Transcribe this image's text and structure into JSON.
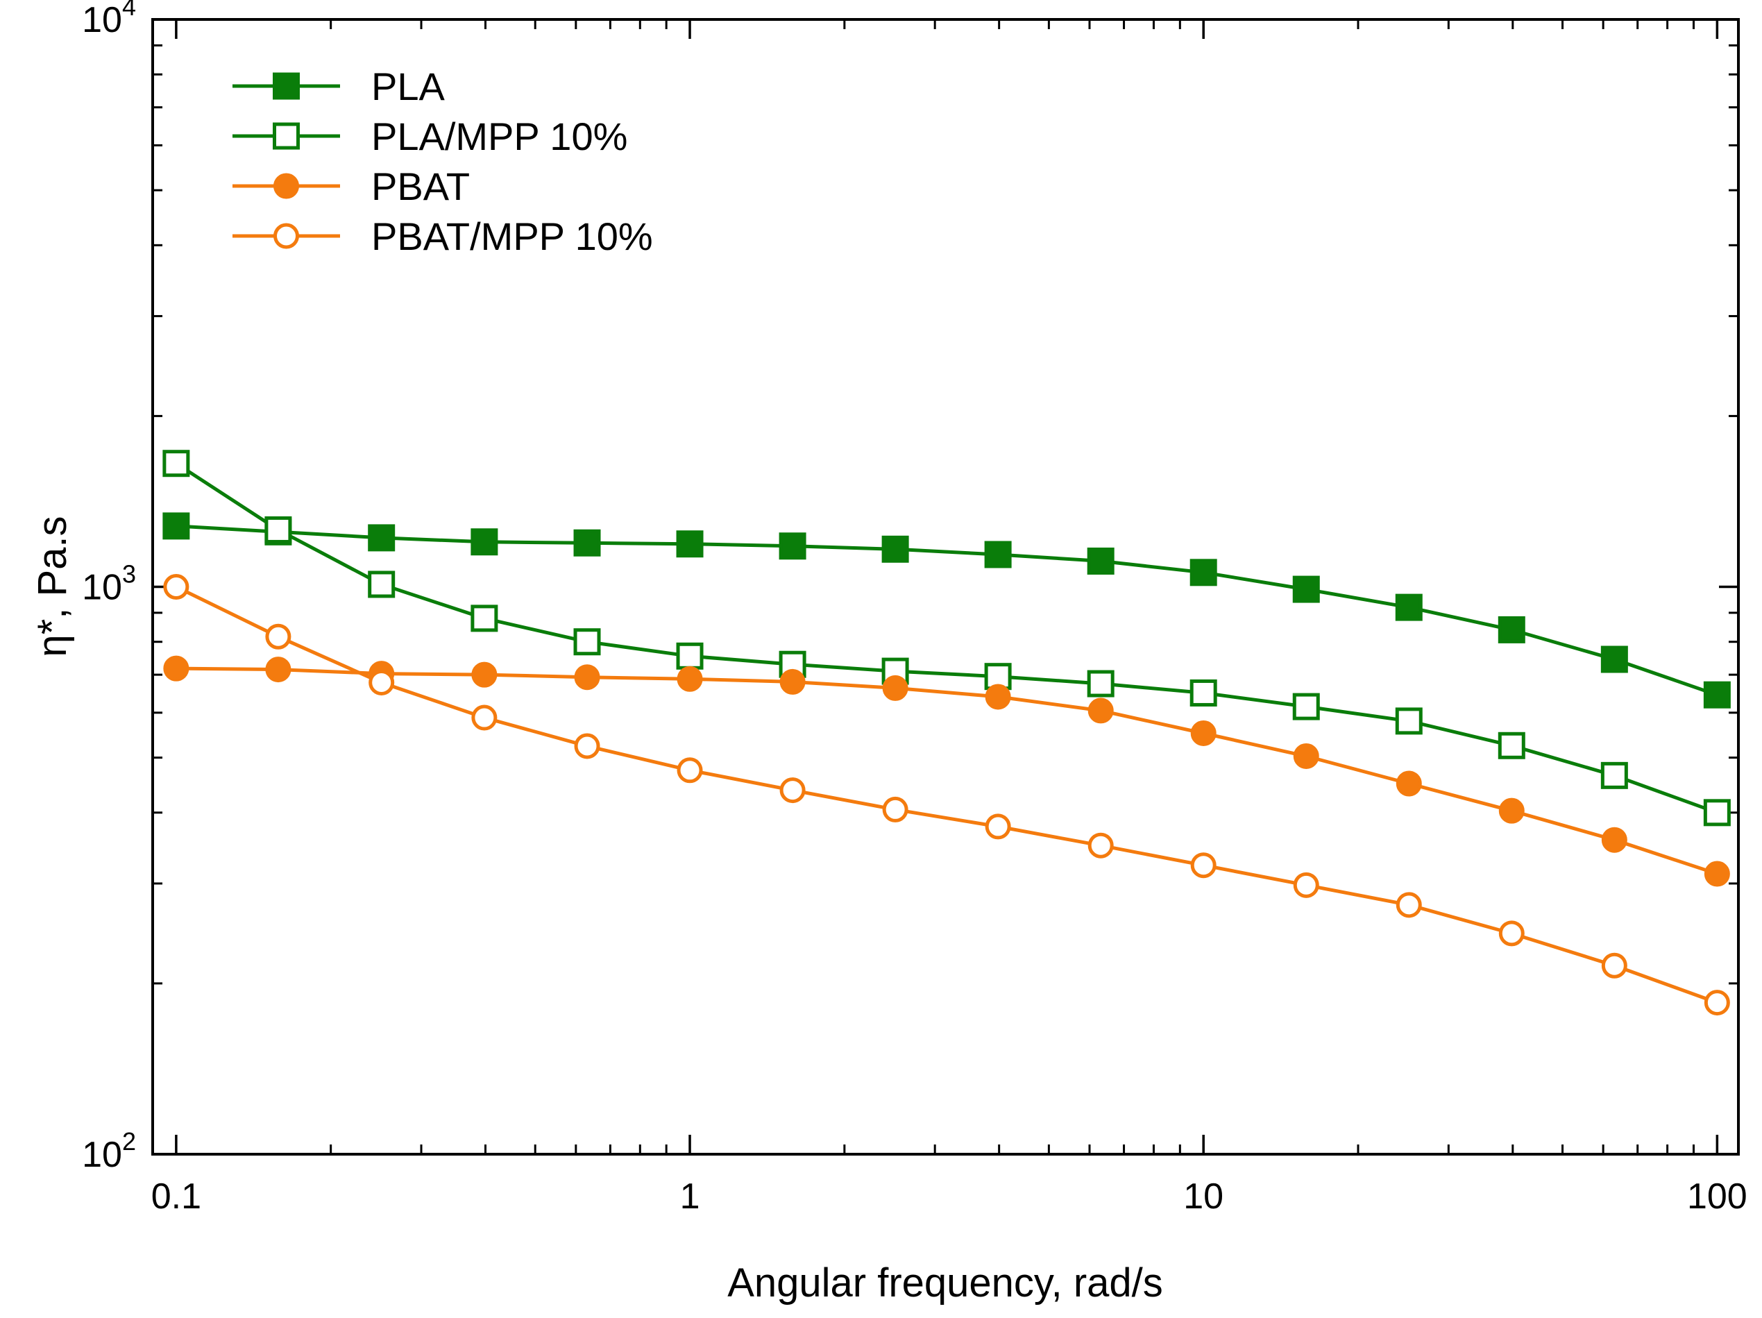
{
  "chart_data": {
    "type": "line",
    "title": "",
    "xlabel": "Angular frequency, rad/s",
    "ylabel": "η*,  Pa.s",
    "xscale": "log",
    "yscale": "log",
    "xlim": [
      0.09,
      110
    ],
    "ylim": [
      100,
      10000
    ],
    "x_ticks": [
      {
        "value": 0.1,
        "label": "0.1"
      },
      {
        "value": 1,
        "label": "1"
      },
      {
        "value": 10,
        "label": "10"
      },
      {
        "value": 100,
        "label": "100"
      }
    ],
    "y_ticks": [
      {
        "value": 100,
        "base": "10",
        "exp": "2"
      },
      {
        "value": 1000,
        "base": "10",
        "exp": "3"
      },
      {
        "value": 10000,
        "base": "10",
        "exp": "4"
      }
    ],
    "legend_position": "top-left",
    "x": [
      0.1,
      0.158,
      0.251,
      0.398,
      0.631,
      1.0,
      1.585,
      2.512,
      3.981,
      6.31,
      10.0,
      15.85,
      25.12,
      39.81,
      63.1,
      100.0
    ],
    "series": [
      {
        "name": "PLA",
        "color": "#0a7d0a",
        "marker": "square",
        "filled": true,
        "values": [
          1280,
          1250,
          1220,
          1200,
          1195,
          1190,
          1180,
          1165,
          1140,
          1110,
          1060,
          990,
          920,
          840,
          745,
          645
        ]
      },
      {
        "name": "PLA/MPP 10%",
        "color": "#0a7d0a",
        "marker": "square",
        "filled": false,
        "values": [
          1650,
          1260,
          1010,
          880,
          800,
          755,
          730,
          710,
          695,
          675,
          650,
          615,
          580,
          525,
          465,
          400
        ]
      },
      {
        "name": "PBAT",
        "color": "#f47b0e",
        "marker": "circle",
        "filled": true,
        "values": [
          718,
          715,
          703,
          700,
          693,
          688,
          680,
          663,
          640,
          605,
          552,
          503,
          450,
          403,
          358,
          312
        ]
      },
      {
        "name": "PBAT/MPP 10%",
        "color": "#f47b0e",
        "marker": "circle",
        "filled": false,
        "values": [
          1000,
          817,
          678,
          588,
          524,
          475,
          438,
          405,
          378,
          350,
          323,
          298,
          275,
          245,
          215,
          185
        ]
      }
    ]
  }
}
